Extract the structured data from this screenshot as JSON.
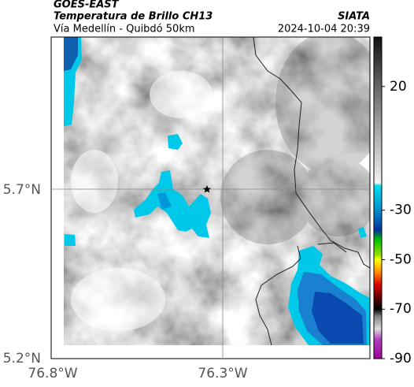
{
  "header": {
    "title": "GOES-EAST",
    "subtitle": "Temperatura de Brillo CH13",
    "location": "Vía Medellín - Quibdó 50km",
    "source": "SIATA",
    "datetime": "2024-10-04 20:39"
  },
  "map": {
    "lat_labels": [
      "5.7°N",
      "5.2°N"
    ],
    "lon_labels": [
      "76.8°W",
      "76.3°W"
    ]
  },
  "colorbar": {
    "range": [
      -90,
      40
    ],
    "ticks": [
      20,
      -30,
      -50,
      -70,
      -90
    ]
  }
}
